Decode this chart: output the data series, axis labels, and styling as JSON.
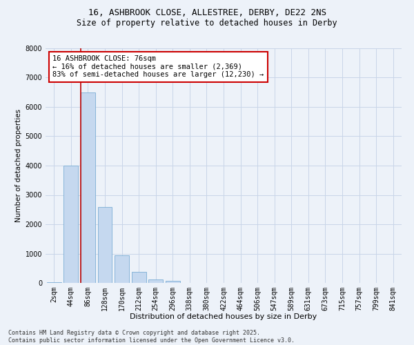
{
  "title_line1": "16, ASHBROOK CLOSE, ALLESTREE, DERBY, DE22 2NS",
  "title_line2": "Size of property relative to detached houses in Derby",
  "xlabel": "Distribution of detached houses by size in Derby",
  "ylabel": "Number of detached properties",
  "bar_color": "#c5d8ef",
  "bar_edge_color": "#7aadd4",
  "grid_color": "#c8d5e8",
  "background_color": "#edf2f9",
  "vline_color": "#bb0000",
  "categories": [
    "2sqm",
    "44sqm",
    "86sqm",
    "128sqm",
    "170sqm",
    "212sqm",
    "254sqm",
    "296sqm",
    "338sqm",
    "380sqm",
    "422sqm",
    "464sqm",
    "506sqm",
    "547sqm",
    "589sqm",
    "631sqm",
    "673sqm",
    "715sqm",
    "757sqm",
    "799sqm",
    "841sqm"
  ],
  "values": [
    30,
    4000,
    6500,
    2600,
    950,
    370,
    120,
    60,
    0,
    0,
    0,
    0,
    0,
    0,
    0,
    0,
    0,
    0,
    0,
    0,
    0
  ],
  "vline_x": 1.575,
  "ylim": [
    0,
    8000
  ],
  "yticks": [
    0,
    1000,
    2000,
    3000,
    4000,
    5000,
    6000,
    7000,
    8000
  ],
  "annotation_title": "16 ASHBROOK CLOSE: 76sqm",
  "annotation_line2": "← 16% of detached houses are smaller (2,369)",
  "annotation_line3": "83% of semi-detached houses are larger (12,230) →",
  "annotation_box_color": "#cc0000",
  "annotation_box_bg": "#ffffff",
  "footnote_line1": "Contains HM Land Registry data © Crown copyright and database right 2025.",
  "footnote_line2": "Contains public sector information licensed under the Open Government Licence v3.0.",
  "title_fontsize": 9,
  "subtitle_fontsize": 8.5,
  "tick_fontsize": 7,
  "xlabel_fontsize": 8,
  "ylabel_fontsize": 7.5,
  "annotation_fontsize": 7.5,
  "footnote_fontsize": 6
}
